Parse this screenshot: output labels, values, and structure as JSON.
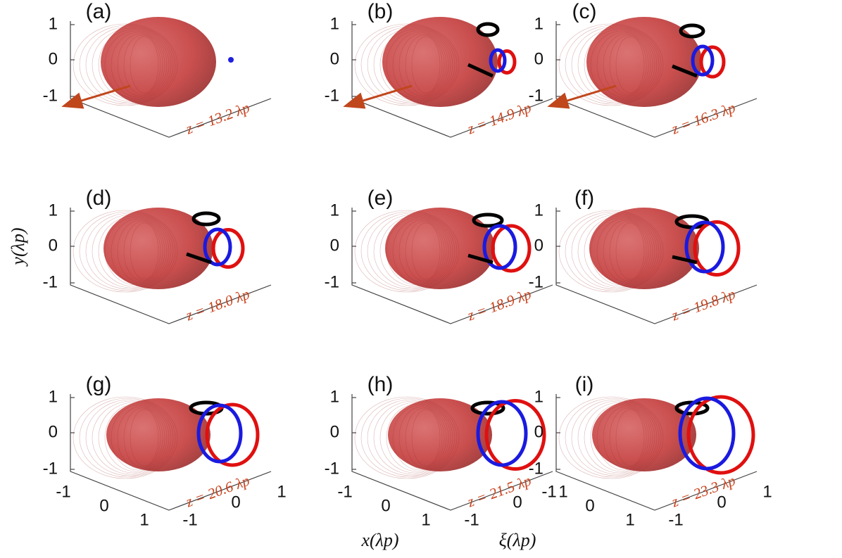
{
  "panels": [
    {
      "label": "(a)",
      "z_label": "z = 13.2 λp"
    },
    {
      "label": "(b)",
      "z_label": "z = 14.9 λp"
    },
    {
      "label": "(c)",
      "z_label": "z = 16.3 λp"
    },
    {
      "label": "(d)",
      "z_label": "z = 18.0 λp"
    },
    {
      "label": "(e)",
      "z_label": "z = 18.9 λp"
    },
    {
      "label": "(f)",
      "z_label": "z = 19.8 λp"
    },
    {
      "label": "(g)",
      "z_label": "z = 20.6 λp"
    },
    {
      "label": "(h)",
      "z_label": "z = 21.5 λp"
    },
    {
      "label": "(i)",
      "z_label": "z = 23.3 λp"
    }
  ],
  "y_ticks": [
    "1",
    "0",
    "-1"
  ],
  "x_ticks": [
    "-1",
    "0",
    "1"
  ],
  "xi_ticks": [
    "-1",
    "0",
    "1"
  ],
  "axis_labels": {
    "y": "y(λp)",
    "x": "x(λp)",
    "xi": "ξ(λp)"
  }
}
